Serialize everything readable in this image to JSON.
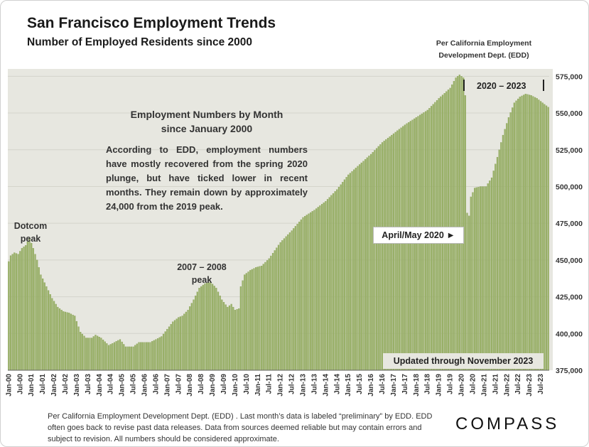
{
  "header": {
    "title": "San Francisco Employment Trends",
    "subtitle": "Number of Employed Residents since 2000",
    "source_line1": "Per California Employment",
    "source_line2": "Development Dept. (EDD)"
  },
  "annotations": {
    "range_label": "2020 – 2023",
    "callout_title_1": "Employment Numbers by Month",
    "callout_title_2": "since January 2000",
    "callout_body": "According to EDD, employment numbers have mostly recovered from the spring 2020 plunge, but have ticked lower in recent months. They remain down by approximately 24,000 from the 2019 peak.",
    "dotcom_1": "Dotcom",
    "dotcom_2": "peak",
    "gfc_1": "2007 – 2008",
    "gfc_2": "peak",
    "covid": "April/May 2020 ►",
    "updated": "Updated through November 2023"
  },
  "footer": {
    "note": "Per California Employment Development Dept. (EDD) . Last month’s data is labeled “preliminary” by EDD. EDD often goes back to revise past data releases. Data from sources deemed reliable but may contain errors and subject to revision. All numbers should be considered approximate.",
    "logo": "COMPASS"
  },
  "colors": {
    "bar": "#9cb36b",
    "bar_edge": "#7c9648",
    "plot_bg": "#e7e7e0",
    "text": "#333333"
  },
  "chart_data": {
    "type": "bar",
    "title": "San Francisco Employment Trends",
    "subtitle": "Number of Employed Residents since 2000",
    "ylim": [
      375000,
      580000
    ],
    "y_ticks": [
      "375,000",
      "400,000",
      "425,000",
      "450,000",
      "475,000",
      "500,000",
      "525,000",
      "550,000",
      "575,000"
    ],
    "y_tick_values": [
      375000,
      400000,
      425000,
      450000,
      475000,
      500000,
      525000,
      550000,
      575000
    ],
    "x_tick_labels": [
      "Jan-00",
      "Jul-00",
      "Jan-01",
      "Jul-01",
      "Jan-02",
      "Jul-02",
      "Jan-03",
      "Jul-03",
      "Jan-04",
      "Jul-04",
      "Jan-05",
      "Jul-05",
      "Jan-06",
      "Jul-06",
      "Jan-07",
      "Jul-07",
      "Jan-08",
      "Jul-08",
      "Jan-09",
      "Jul-09",
      "Jan-10",
      "Jul-10",
      "Jan-11",
      "Jul-11",
      "Jan-12",
      "Jul-12",
      "Jan-13",
      "Jul-13",
      "Jan-14",
      "Jul-14",
      "Jan-15",
      "Jul-15",
      "Jan-16",
      "Jul-16",
      "Jan-17",
      "Jul-17",
      "Jan-18",
      "Jul-18",
      "Jan-19",
      "Jul-19",
      "Jan-20",
      "Jul-20",
      "Jan-21",
      "Jul-21",
      "Jan-22",
      "Jul-22",
      "Jan-23",
      "Jul-23"
    ],
    "start": "Jan-00",
    "end": "Nov-23",
    "frequency": "monthly",
    "grid": true,
    "keypoints": [
      [
        "Jan-00",
        449000
      ],
      [
        "Feb-00",
        453000
      ],
      [
        "Apr-00",
        455000
      ],
      [
        "Jun-00",
        454000
      ],
      [
        "Aug-00",
        458000
      ],
      [
        "Oct-00",
        460000
      ],
      [
        "Dec-00",
        465000
      ],
      [
        "Feb-01",
        458000
      ],
      [
        "Apr-01",
        450000
      ],
      [
        "Jun-01",
        440000
      ],
      [
        "Sep-01",
        432000
      ],
      [
        "Dec-01",
        424000
      ],
      [
        "Mar-02",
        418000
      ],
      [
        "Jun-02",
        415000
      ],
      [
        "Sep-02",
        414000
      ],
      [
        "Dec-02",
        412000
      ],
      [
        "Mar-03",
        401000
      ],
      [
        "Jun-03",
        397000
      ],
      [
        "Sep-03",
        397000
      ],
      [
        "Nov-03",
        399000
      ],
      [
        "Feb-04",
        397000
      ],
      [
        "Jun-04",
        392000
      ],
      [
        "Sep-04",
        394000
      ],
      [
        "Dec-04",
        396000
      ],
      [
        "Mar-05",
        391000
      ],
      [
        "Jul-05",
        391000
      ],
      [
        "Oct-05",
        394000
      ],
      [
        "Jan-06",
        394000
      ],
      [
        "Apr-06",
        394000
      ],
      [
        "Jul-06",
        396000
      ],
      [
        "Oct-06",
        398000
      ],
      [
        "Jan-07",
        403000
      ],
      [
        "Apr-07",
        408000
      ],
      [
        "Jul-07",
        411000
      ],
      [
        "Sep-07",
        412000
      ],
      [
        "Dec-07",
        416000
      ],
      [
        "Mar-08",
        423000
      ],
      [
        "Jun-08",
        431000
      ],
      [
        "Sep-08",
        434000
      ],
      [
        "Dec-08",
        435000
      ],
      [
        "Mar-09",
        431000
      ],
      [
        "Jun-09",
        423000
      ],
      [
        "Sep-09",
        418000
      ],
      [
        "Nov-09",
        420000
      ],
      [
        "Jan-10",
        416000
      ],
      [
        "Mar-10",
        417000
      ],
      [
        "Apr-10",
        432000
      ],
      [
        "Jun-10",
        440000
      ],
      [
        "Sep-10",
        443000
      ],
      [
        "Dec-10",
        445000
      ],
      [
        "Mar-11",
        446000
      ],
      [
        "Jul-11",
        451000
      ],
      [
        "Jan-12",
        462000
      ],
      [
        "Jul-12",
        470000
      ],
      [
        "Jan-13",
        479000
      ],
      [
        "Jul-13",
        484000
      ],
      [
        "Jan-14",
        490000
      ],
      [
        "Jul-14",
        498000
      ],
      [
        "Jan-15",
        508000
      ],
      [
        "Jul-15",
        515000
      ],
      [
        "Jan-16",
        522000
      ],
      [
        "Jul-16",
        530000
      ],
      [
        "Jan-17",
        536000
      ],
      [
        "Jul-17",
        542000
      ],
      [
        "Jan-18",
        547000
      ],
      [
        "Jul-18",
        552000
      ],
      [
        "Jan-19",
        560000
      ],
      [
        "Jul-19",
        567000
      ],
      [
        "Oct-19",
        574000
      ],
      [
        "Dec-19",
        576000
      ],
      [
        "Feb-20",
        574000
      ],
      [
        "Mar-20",
        562000
      ],
      [
        "Apr-20",
        482000
      ],
      [
        "May-20",
        480000
      ],
      [
        "Jun-20",
        493000
      ],
      [
        "Aug-20",
        499000
      ],
      [
        "Nov-20",
        500000
      ],
      [
        "Feb-21",
        500000
      ],
      [
        "May-21",
        506000
      ],
      [
        "Aug-21",
        520000
      ],
      [
        "Nov-21",
        535000
      ],
      [
        "Feb-22",
        547000
      ],
      [
        "May-22",
        557000
      ],
      [
        "Aug-22",
        561000
      ],
      [
        "Nov-22",
        563000
      ],
      [
        "Feb-23",
        562000
      ],
      [
        "May-23",
        560000
      ],
      [
        "Aug-23",
        557000
      ],
      [
        "Nov-23",
        554000
      ]
    ]
  }
}
